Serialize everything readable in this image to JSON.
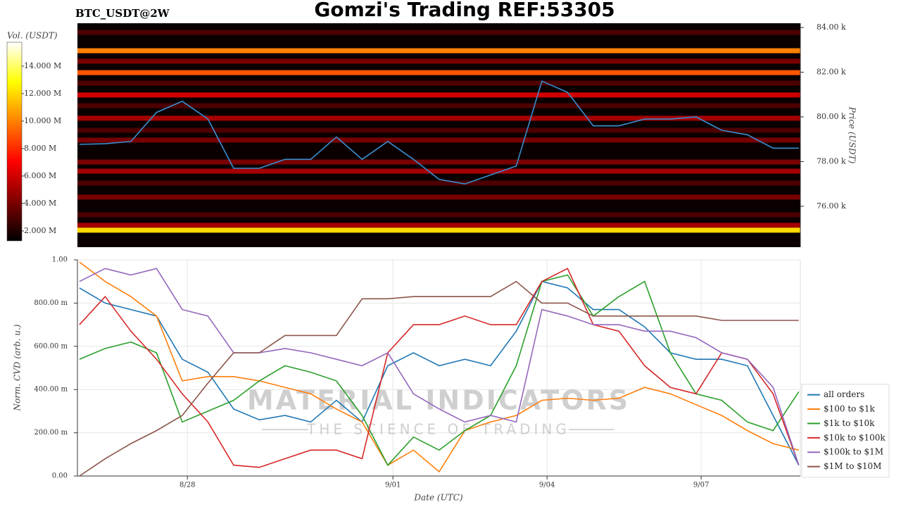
{
  "chart_data": [
    {
      "type": "heatmap",
      "title": "Gomzi's Trading REF:53305",
      "subtitle": "BTC_USDT@2W",
      "ylabel": "Price (USDT)",
      "colorbar_label": "Vol. (USDT)",
      "xlim": [
        -2.14,
        11.93
      ],
      "ylim": [
        74170,
        84190
      ],
      "yticks": [
        {
          "value": 76000,
          "label": "76.00 k"
        },
        {
          "value": 78000,
          "label": "78.00 k"
        },
        {
          "value": 80000,
          "label": "80.00 k"
        },
        {
          "value": 82000,
          "label": "82.00 k"
        },
        {
          "value": 84000,
          "label": "84.00 k"
        }
      ],
      "clim": [
        1280000,
        15740000
      ],
      "cticks": [
        {
          "value": 2000000,
          "label": "2.000 M"
        },
        {
          "value": 4000000,
          "label": "4.000 M"
        },
        {
          "value": 6000000,
          "label": "6.000 M"
        },
        {
          "value": 8000000,
          "label": "8.000 M"
        },
        {
          "value": 10000000,
          "label": "10.000 M"
        },
        {
          "value": 12000000,
          "label": "12.000 M"
        },
        {
          "value": 14000000,
          "label": "14.000 M"
        }
      ],
      "bands": {
        "prices": [
          83780,
          82960,
          82490,
          81980,
          81510,
          80980,
          80500,
          79940,
          79400,
          78960,
          77980,
          77570,
          77040,
          76410,
          75620,
          75150,
          74930
        ],
        "volumes": [
          3000000,
          10000000,
          4000000,
          9000000,
          3000000,
          6000000,
          3000000,
          5000000,
          3000000,
          4000000,
          4000000,
          5000000,
          3000000,
          4000000,
          3000000,
          5000000,
          12000000
        ]
      },
      "price_line": {
        "color": "#3a8fd0",
        "x": [
          -2.1,
          -1.6,
          -1.1,
          -0.6,
          -0.1,
          0.4,
          0.9,
          1.4,
          1.9,
          2.4,
          2.9,
          3.4,
          3.9,
          4.4,
          4.9,
          5.4,
          5.9,
          6.4,
          6.9,
          7.4,
          7.9,
          8.4,
          8.9,
          9.4,
          9.9,
          10.4,
          10.9,
          11.4,
          11.9
        ],
        "values": [
          78770,
          78800,
          78900,
          80200,
          80700,
          79900,
          77700,
          77700,
          78100,
          78100,
          79100,
          78100,
          78900,
          78100,
          77200,
          77000,
          77400,
          77800,
          81600,
          81100,
          79600,
          79600,
          79900,
          79900,
          80000,
          79400,
          79200,
          78600,
          78600
        ]
      }
    },
    {
      "type": "line",
      "xlabel": "Date (UTC)",
      "ylabel": "Norm. CVD (arb. u.)",
      "xlim": [
        -2.14,
        11.93
      ],
      "xticks": [
        {
          "value": 0,
          "label": "8/28"
        },
        {
          "value": 4,
          "label": "9/01"
        },
        {
          "value": 7,
          "label": "9/04"
        },
        {
          "value": 10,
          "label": "9/07"
        }
      ],
      "ylim": [
        0,
        1
      ],
      "yticks": [
        {
          "value": 0,
          "label": "0.00"
        },
        {
          "value": 0.2,
          "label": "200.00 m"
        },
        {
          "value": 0.4,
          "label": "400.00 m"
        },
        {
          "value": 0.6,
          "label": "600.00 m"
        },
        {
          "value": 0.8,
          "label": "800.00 m"
        },
        {
          "value": 1,
          "label": "1.00"
        }
      ],
      "grid": true,
      "legend": "lower right",
      "watermark": [
        "MATERIAL INDICATORS",
        "THE SCIENCE OF TRADING"
      ],
      "x": [
        -2.1,
        -1.6,
        -1.1,
        -0.6,
        -0.1,
        0.4,
        0.9,
        1.4,
        1.9,
        2.4,
        2.9,
        3.4,
        3.9,
        4.4,
        4.9,
        5.4,
        5.9,
        6.4,
        6.9,
        7.4,
        7.9,
        8.4,
        8.9,
        9.4,
        9.9,
        10.4,
        10.9,
        11.4,
        11.9
      ],
      "series": [
        {
          "name": "all orders",
          "color": "#1f77b4",
          "values": [
            0.87,
            0.8,
            0.77,
            0.74,
            0.54,
            0.48,
            0.31,
            0.26,
            0.28,
            0.25,
            0.35,
            0.25,
            0.51,
            0.57,
            0.51,
            0.54,
            0.51,
            0.67,
            0.9,
            0.87,
            0.77,
            0.77,
            0.69,
            0.57,
            0.54,
            0.54,
            0.51,
            0.28,
            0.05
          ]
        },
        {
          "name": "$100 to $1k",
          "color": "#ff7f0e",
          "values": [
            0.99,
            0.9,
            0.83,
            0.74,
            0.44,
            0.46,
            0.46,
            0.44,
            0.41,
            0.38,
            0.31,
            0.25,
            0.05,
            0.12,
            0.02,
            0.21,
            0.25,
            0.28,
            0.35,
            0.36,
            0.35,
            0.36,
            0.41,
            0.38,
            0.33,
            0.28,
            0.21,
            0.15,
            0.12
          ]
        },
        {
          "name": "$1k to $10k",
          "color": "#2ca02c",
          "values": [
            0.54,
            0.59,
            0.62,
            0.57,
            0.25,
            0.3,
            0.35,
            0.44,
            0.51,
            0.48,
            0.44,
            0.28,
            0.05,
            0.18,
            0.12,
            0.21,
            0.28,
            0.51,
            0.9,
            0.93,
            0.74,
            0.83,
            0.9,
            0.57,
            0.38,
            0.35,
            0.25,
            0.21,
            0.39
          ]
        },
        {
          "name": "$10k to $100k",
          "color": "#d62728",
          "values": [
            0.7,
            0.83,
            0.67,
            0.54,
            0.38,
            0.25,
            0.05,
            0.04,
            0.08,
            0.12,
            0.12,
            0.08,
            0.57,
            0.7,
            0.7,
            0.74,
            0.7,
            0.7,
            0.9,
            0.96,
            0.7,
            0.67,
            0.51,
            0.41,
            0.38,
            0.57,
            0.54,
            0.38,
            0.05
          ]
        },
        {
          "name": "$100k to $1M",
          "color": "#9467bd",
          "values": [
            0.9,
            0.96,
            0.93,
            0.96,
            0.77,
            0.74,
            0.57,
            0.57,
            0.59,
            0.57,
            0.54,
            0.51,
            0.57,
            0.38,
            0.31,
            0.25,
            0.28,
            0.25,
            0.77,
            0.74,
            0.7,
            0.7,
            0.67,
            0.67,
            0.64,
            0.57,
            0.54,
            0.41,
            0.05
          ]
        },
        {
          "name": "$1M to $10M",
          "color": "#8c564b",
          "values": [
            0.0,
            0.08,
            0.15,
            0.21,
            0.28,
            0.43,
            0.57,
            0.57,
            0.65,
            0.65,
            0.65,
            0.82,
            0.82,
            0.83,
            0.83,
            0.83,
            0.83,
            0.9,
            0.8,
            0.8,
            0.74,
            0.74,
            0.74,
            0.74,
            0.74,
            0.72,
            0.72,
            0.72,
            0.72
          ]
        }
      ]
    }
  ]
}
